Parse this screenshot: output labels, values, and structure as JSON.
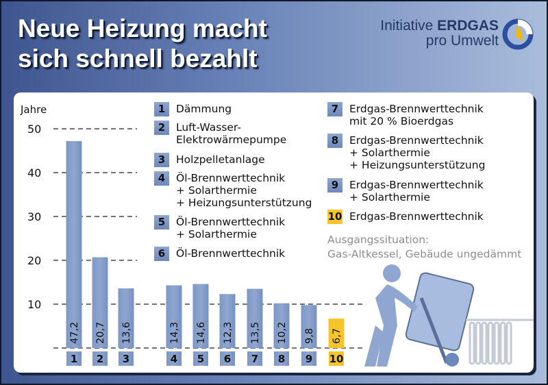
{
  "title_line1": "Neue Heizung macht",
  "title_line2": "sich schnell bezahlt",
  "logo": {
    "line1_pre": "Initiative ",
    "line1_bold": "ERDGAS",
    "line2": "pro Umwelt"
  },
  "colors": {
    "bar": "#8ea6cf",
    "bar_highlight": "#f7c52a",
    "background_dark": "#3f5590",
    "background_light": "#a9bddb"
  },
  "legend": [
    {
      "num": "1",
      "lines": [
        "Dämmung"
      ]
    },
    {
      "num": "2",
      "lines": [
        "Luft-Wasser-",
        "Elektrowärmepumpe"
      ]
    },
    {
      "num": "3",
      "lines": [
        "Holzpelletanlage"
      ]
    },
    {
      "num": "4",
      "lines": [
        "Öl-Brennwerttechnik",
        "+ Solarthermie",
        "+ Heizungsunterstützung"
      ]
    },
    {
      "num": "5",
      "lines": [
        "Öl-Brennwerttechnik",
        "+ Solarthermie"
      ]
    },
    {
      "num": "6",
      "lines": [
        "Öl-Brennwerttechnik"
      ]
    },
    {
      "num": "7",
      "lines": [
        "Erdgas-Brennwerttechnik",
        "mit 20 % Bioerdgas"
      ]
    },
    {
      "num": "8",
      "lines": [
        "Erdgas-Brennwerttechnik",
        "+ Solarthermie",
        "+ Heizungsunterstützung"
      ]
    },
    {
      "num": "9",
      "lines": [
        "Erdgas-Brennwerttechnik",
        "+ Solarthermie"
      ]
    },
    {
      "num": "10",
      "lines": [
        "Erdgas-Brennwerttechnik"
      ]
    }
  ],
  "situation": {
    "line1": "Ausgangssituation:",
    "line2": "Gas-Altkessel, Gebäude ungedämmt"
  },
  "chart_data": {
    "type": "bar",
    "ylabel": "Jahre",
    "ylim": [
      0,
      50
    ],
    "yticks": [
      10,
      20,
      30,
      40,
      50
    ],
    "grid": "dashed horizontal",
    "categories": [
      "1",
      "2",
      "3",
      "4",
      "5",
      "6",
      "7",
      "8",
      "9",
      "10"
    ],
    "values": [
      47.2,
      20.7,
      13.6,
      14.3,
      14.6,
      12.3,
      13.5,
      10.2,
      9.8,
      6.7
    ],
    "value_labels": [
      "47,2",
      "20,7",
      "13,6",
      "14,3",
      "14,6",
      "12,3",
      "13,5",
      "10,2",
      "9,8",
      "6,7"
    ],
    "highlight_category": "10"
  }
}
